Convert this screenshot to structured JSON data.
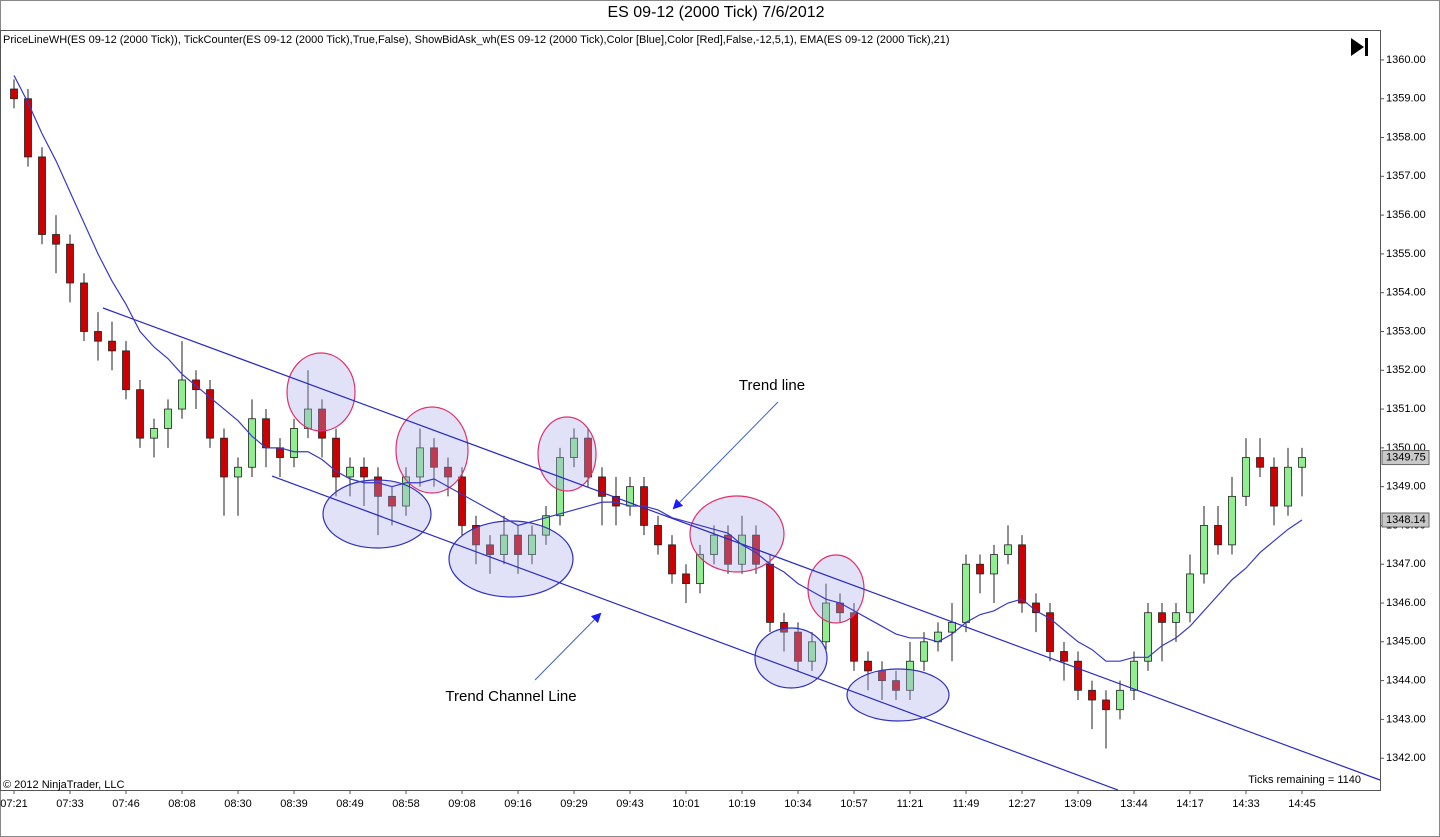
{
  "chart_data": {
    "type": "candlestick",
    "title": "ES 09-12 (2000 Tick)  7/6/2012",
    "indicators": "PriceLineWH(ES 09-12 (2000 Tick)), TickCounter(ES 09-12 (2000 Tick),True,False), ShowBidAsk_wh(ES 09-12 (2000 Tick),Color [Blue],Color [Red],False,-12,5,1), EMA(ES 09-12 (2000 Tick),21)",
    "copyright": "© 2012 NinjaTrader, LLC",
    "ticks_remaining": "Ticks remaining = 1140",
    "annotations": [
      "Trend line",
      "Trend Channel Line"
    ],
    "categories": [
      "07:21",
      null,
      null,
      null,
      "07:33",
      null,
      null,
      null,
      "07:46",
      null,
      null,
      null,
      "08:08",
      null,
      null,
      null,
      "08:30",
      null,
      null,
      null,
      "08:39",
      null,
      null,
      null,
      "08:49",
      null,
      null,
      null,
      "08:58",
      null,
      null,
      null,
      "09:08",
      null,
      null,
      null,
      "09:16",
      null,
      null,
      null,
      "09:29",
      null,
      null,
      null,
      "09:43",
      null,
      null,
      null,
      "10:01",
      null,
      null,
      null,
      "10:19",
      null,
      null,
      null,
      "10:34",
      null,
      null,
      null,
      "10:57",
      null,
      null,
      null,
      "11:21",
      null,
      null,
      null,
      "11:49",
      null,
      null,
      null,
      "12:27",
      null,
      null,
      null,
      "13:09",
      null,
      null,
      null,
      "13:44",
      null,
      null,
      null,
      "14:17",
      null,
      null,
      null,
      "14:33",
      null,
      null,
      null,
      "14:45"
    ],
    "open": [
      1359.25,
      1359.0,
      1357.5,
      1355.5,
      1355.25,
      1354.25,
      1353.0,
      1352.75,
      1352.5,
      1351.5,
      1350.25,
      1350.5,
      1351.0,
      1351.75,
      1351.5,
      1350.25,
      1349.25,
      1349.5,
      1350.75,
      1350.0,
      1349.75,
      1350.5,
      1351.0,
      1350.25,
      1349.25,
      1349.5,
      1349.25,
      1348.75,
      1348.5,
      1349.25,
      1350.0,
      1349.5,
      1349.25,
      1348.0,
      1347.5,
      1347.25,
      1347.75,
      1347.25,
      1347.75,
      1348.25,
      1349.75,
      1350.25,
      1349.25,
      1348.75,
      1348.5,
      1349.0,
      1348.0,
      1347.5,
      1346.75,
      1346.5,
      1347.25,
      1347.75,
      1347.0,
      1347.75,
      1347.0,
      1345.5,
      1345.25,
      1344.5,
      1345.0,
      1346.0,
      1345.75,
      1344.5,
      1344.25,
      1344.0,
      1343.75,
      1344.5,
      1345.0,
      1345.25,
      1345.5,
      1347.0,
      1346.75,
      1347.25,
      1347.5,
      1346.0,
      1345.75,
      1344.75,
      1344.5,
      1343.75,
      1343.5,
      1343.25,
      1343.75,
      1344.5,
      1345.75,
      1345.5,
      1345.75,
      1346.75,
      1348.0,
      1347.5,
      1348.75,
      1349.75,
      1349.5,
      1348.5,
      1349.5
    ],
    "high": [
      1359.5,
      1359.25,
      1357.75,
      1356.0,
      1355.5,
      1354.5,
      1353.5,
      1353.25,
      1352.75,
      1351.75,
      1350.75,
      1351.25,
      1352.75,
      1352.0,
      1351.75,
      1350.5,
      1349.75,
      1351.25,
      1351.0,
      1350.25,
      1350.75,
      1352.0,
      1351.25,
      1350.5,
      1349.75,
      1349.75,
      1349.5,
      1349.0,
      1349.5,
      1350.5,
      1350.25,
      1349.75,
      1349.5,
      1348.25,
      1347.75,
      1348.25,
      1348.0,
      1348.0,
      1348.5,
      1350.0,
      1350.5,
      1350.5,
      1349.5,
      1349.25,
      1349.25,
      1349.25,
      1348.25,
      1347.75,
      1347.0,
      1347.5,
      1348.0,
      1348.0,
      1348.25,
      1348.0,
      1347.25,
      1345.75,
      1345.5,
      1345.25,
      1346.5,
      1346.25,
      1346.0,
      1344.75,
      1344.5,
      1344.25,
      1345.0,
      1345.25,
      1345.5,
      1346.0,
      1347.25,
      1347.25,
      1347.5,
      1348.0,
      1347.75,
      1346.25,
      1346.0,
      1345.0,
      1344.75,
      1344.0,
      1343.75,
      1344.0,
      1344.75,
      1346.0,
      1346.0,
      1346.0,
      1347.25,
      1348.5,
      1348.5,
      1349.25,
      1350.25,
      1350.25,
      1349.75,
      1350.0,
      1350.0
    ],
    "low": [
      1358.75,
      1357.25,
      1355.25,
      1354.5,
      1353.75,
      1352.75,
      1352.25,
      1352.0,
      1351.25,
      1350.0,
      1349.75,
      1350.0,
      1350.75,
      1351.0,
      1350.0,
      1348.25,
      1348.25,
      1349.25,
      1349.5,
      1349.25,
      1349.5,
      1350.25,
      1349.75,
      1348.75,
      1348.75,
      1348.5,
      1347.75,
      1348.0,
      1348.25,
      1349.0,
      1349.0,
      1348.75,
      1347.75,
      1347.0,
      1346.75,
      1347.0,
      1346.75,
      1347.0,
      1347.5,
      1348.0,
      1349.5,
      1349.0,
      1348.0,
      1348.0,
      1348.25,
      1347.75,
      1347.25,
      1346.5,
      1346.0,
      1346.25,
      1347.0,
      1346.75,
      1346.75,
      1346.75,
      1345.25,
      1344.75,
      1344.25,
      1344.25,
      1344.75,
      1345.5,
      1344.25,
      1343.75,
      1343.5,
      1343.5,
      1343.5,
      1344.25,
      1344.75,
      1344.5,
      1345.25,
      1346.25,
      1346.0,
      1347.0,
      1345.75,
      1345.25,
      1344.5,
      1344.0,
      1343.5,
      1342.75,
      1342.25,
      1343.0,
      1343.5,
      1344.25,
      1344.5,
      1345.0,
      1345.5,
      1346.5,
      1347.25,
      1347.25,
      1348.5,
      1349.25,
      1348.0,
      1348.25,
      1348.75
    ],
    "close": [
      1359.0,
      1357.5,
      1355.5,
      1355.25,
      1354.25,
      1353.0,
      1352.75,
      1352.5,
      1351.5,
      1350.25,
      1350.5,
      1351.0,
      1351.75,
      1351.5,
      1350.25,
      1349.25,
      1349.5,
      1350.75,
      1350.0,
      1349.75,
      1350.5,
      1351.0,
      1350.25,
      1349.25,
      1349.5,
      1349.25,
      1348.75,
      1348.5,
      1349.25,
      1350.0,
      1349.5,
      1349.25,
      1348.0,
      1347.5,
      1347.25,
      1347.75,
      1347.25,
      1347.75,
      1348.25,
      1349.75,
      1350.25,
      1349.25,
      1348.75,
      1348.5,
      1349.0,
      1348.0,
      1347.5,
      1346.75,
      1346.5,
      1347.25,
      1347.75,
      1347.0,
      1347.75,
      1347.0,
      1345.5,
      1345.25,
      1344.5,
      1345.0,
      1346.0,
      1345.75,
      1344.5,
      1344.25,
      1344.0,
      1343.75,
      1344.5,
      1345.0,
      1345.25,
      1345.5,
      1347.0,
      1346.75,
      1347.25,
      1347.5,
      1346.0,
      1345.75,
      1344.75,
      1344.5,
      1343.75,
      1343.5,
      1343.25,
      1343.75,
      1344.5,
      1345.75,
      1345.5,
      1345.75,
      1346.75,
      1348.0,
      1347.5,
      1348.75,
      1349.75,
      1349.5,
      1348.5,
      1349.5,
      1349.75
    ],
    "up_color": "#90ee90",
    "down_color": "#cc0000",
    "series": [
      {
        "name": "EMA",
        "color": "#3838c8",
        "values": [
          1359.6,
          1358.9,
          1358.1,
          1357.4,
          1356.6,
          1355.8,
          1355.0,
          1354.3,
          1353.7,
          1353.0,
          1352.6,
          1352.3,
          1351.9,
          1351.6,
          1351.3,
          1351.0,
          1350.7,
          1350.3,
          1350.0,
          1350.0,
          1349.9,
          1349.9,
          1349.7,
          1349.4,
          1349.2,
          1349.1,
          1349.1,
          1349.0,
          1349.1,
          1349.1,
          1349.2,
          1349.0,
          1348.8,
          1348.6,
          1348.4,
          1348.2,
          1348.0,
          1348.1,
          1348.2,
          1348.3,
          1348.4,
          1348.5,
          1348.6,
          1348.6,
          1348.5,
          1348.5,
          1348.4,
          1348.2,
          1348.1,
          1348.0,
          1347.9,
          1347.8,
          1347.5,
          1347.3,
          1347.0,
          1346.8,
          1346.5,
          1346.3,
          1346.1,
          1346.0,
          1345.8,
          1345.6,
          1345.4,
          1345.2,
          1345.1,
          1345.1,
          1345.0,
          1345.2,
          1345.5,
          1345.7,
          1345.8,
          1346.0,
          1346.1,
          1345.8,
          1345.6,
          1345.3,
          1345.0,
          1344.8,
          1344.5,
          1344.5,
          1344.6,
          1344.6,
          1344.9,
          1345.1,
          1345.4,
          1345.8,
          1346.2,
          1346.6,
          1346.9,
          1347.3,
          1347.6,
          1347.9,
          1348.14
        ]
      }
    ],
    "last_price_labels": [
      1349.75,
      1348.14
    ],
    "ylim": [
      1341.18,
      1360.72
    ],
    "yticks": [
      {
        "value": 1342,
        "label": "1342.00"
      },
      {
        "value": 1343,
        "label": "1343.00"
      },
      {
        "value": 1344,
        "label": "1344.00"
      },
      {
        "value": 1345,
        "label": "1345.00"
      },
      {
        "value": 1346,
        "label": "1346.00"
      },
      {
        "value": 1347,
        "label": "1347.00"
      },
      {
        "value": 1348,
        "label": "1348.00"
      },
      {
        "value": 1349,
        "label": "1349.00"
      },
      {
        "value": 1350,
        "label": "1350.00"
      },
      {
        "value": 1351,
        "label": "1351.00"
      },
      {
        "value": 1352,
        "label": "1352.00"
      },
      {
        "value": 1353,
        "label": "1353.00"
      },
      {
        "value": 1354,
        "label": "1354.00"
      },
      {
        "value": 1355,
        "label": "1355.00"
      },
      {
        "value": 1356,
        "label": "1356.00"
      },
      {
        "value": 1357,
        "label": "1357.00"
      },
      {
        "value": 1358,
        "label": "1358.00"
      },
      {
        "value": 1359,
        "label": "1359.00"
      },
      {
        "value": 1360,
        "label": "1360.00"
      }
    ],
    "grid": false
  }
}
